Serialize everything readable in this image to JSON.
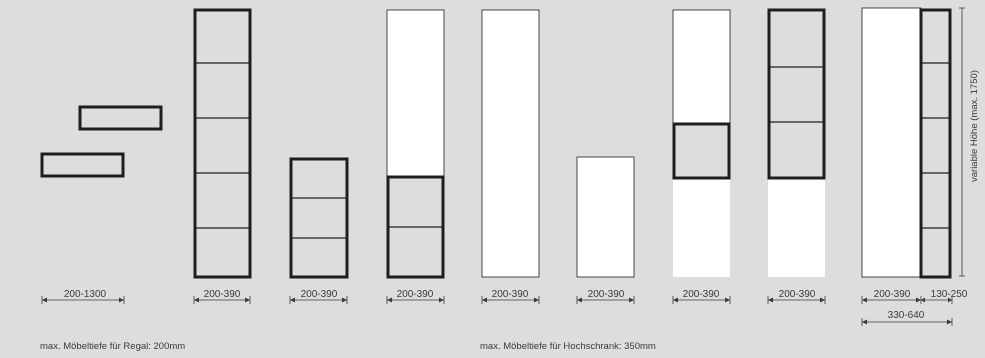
{
  "dimensions": {
    "shelf_wide": "200-1300",
    "col_2": "200-390",
    "col_3": "200-390",
    "col_4": "200-390",
    "col_5": "200-390",
    "col_6": "200-390",
    "col_7": "200-390",
    "col_8": "200-390",
    "col_9_left": "200-390",
    "col_9_right": "130-250",
    "col_9_total": "330-640"
  },
  "height_label": "variable Höhe (max. 1750)",
  "notes": {
    "regal": "max. Möbeltiefe für Regal: 200mm",
    "hochschrank": "max. Möbeltiefe für Hochschrank: 350mm"
  },
  "colors": {
    "background": "#dcdddf",
    "cabinet_fill": "#ffffff",
    "frame_stroke": "#1e1e1e",
    "text": "#3a3a3a"
  }
}
